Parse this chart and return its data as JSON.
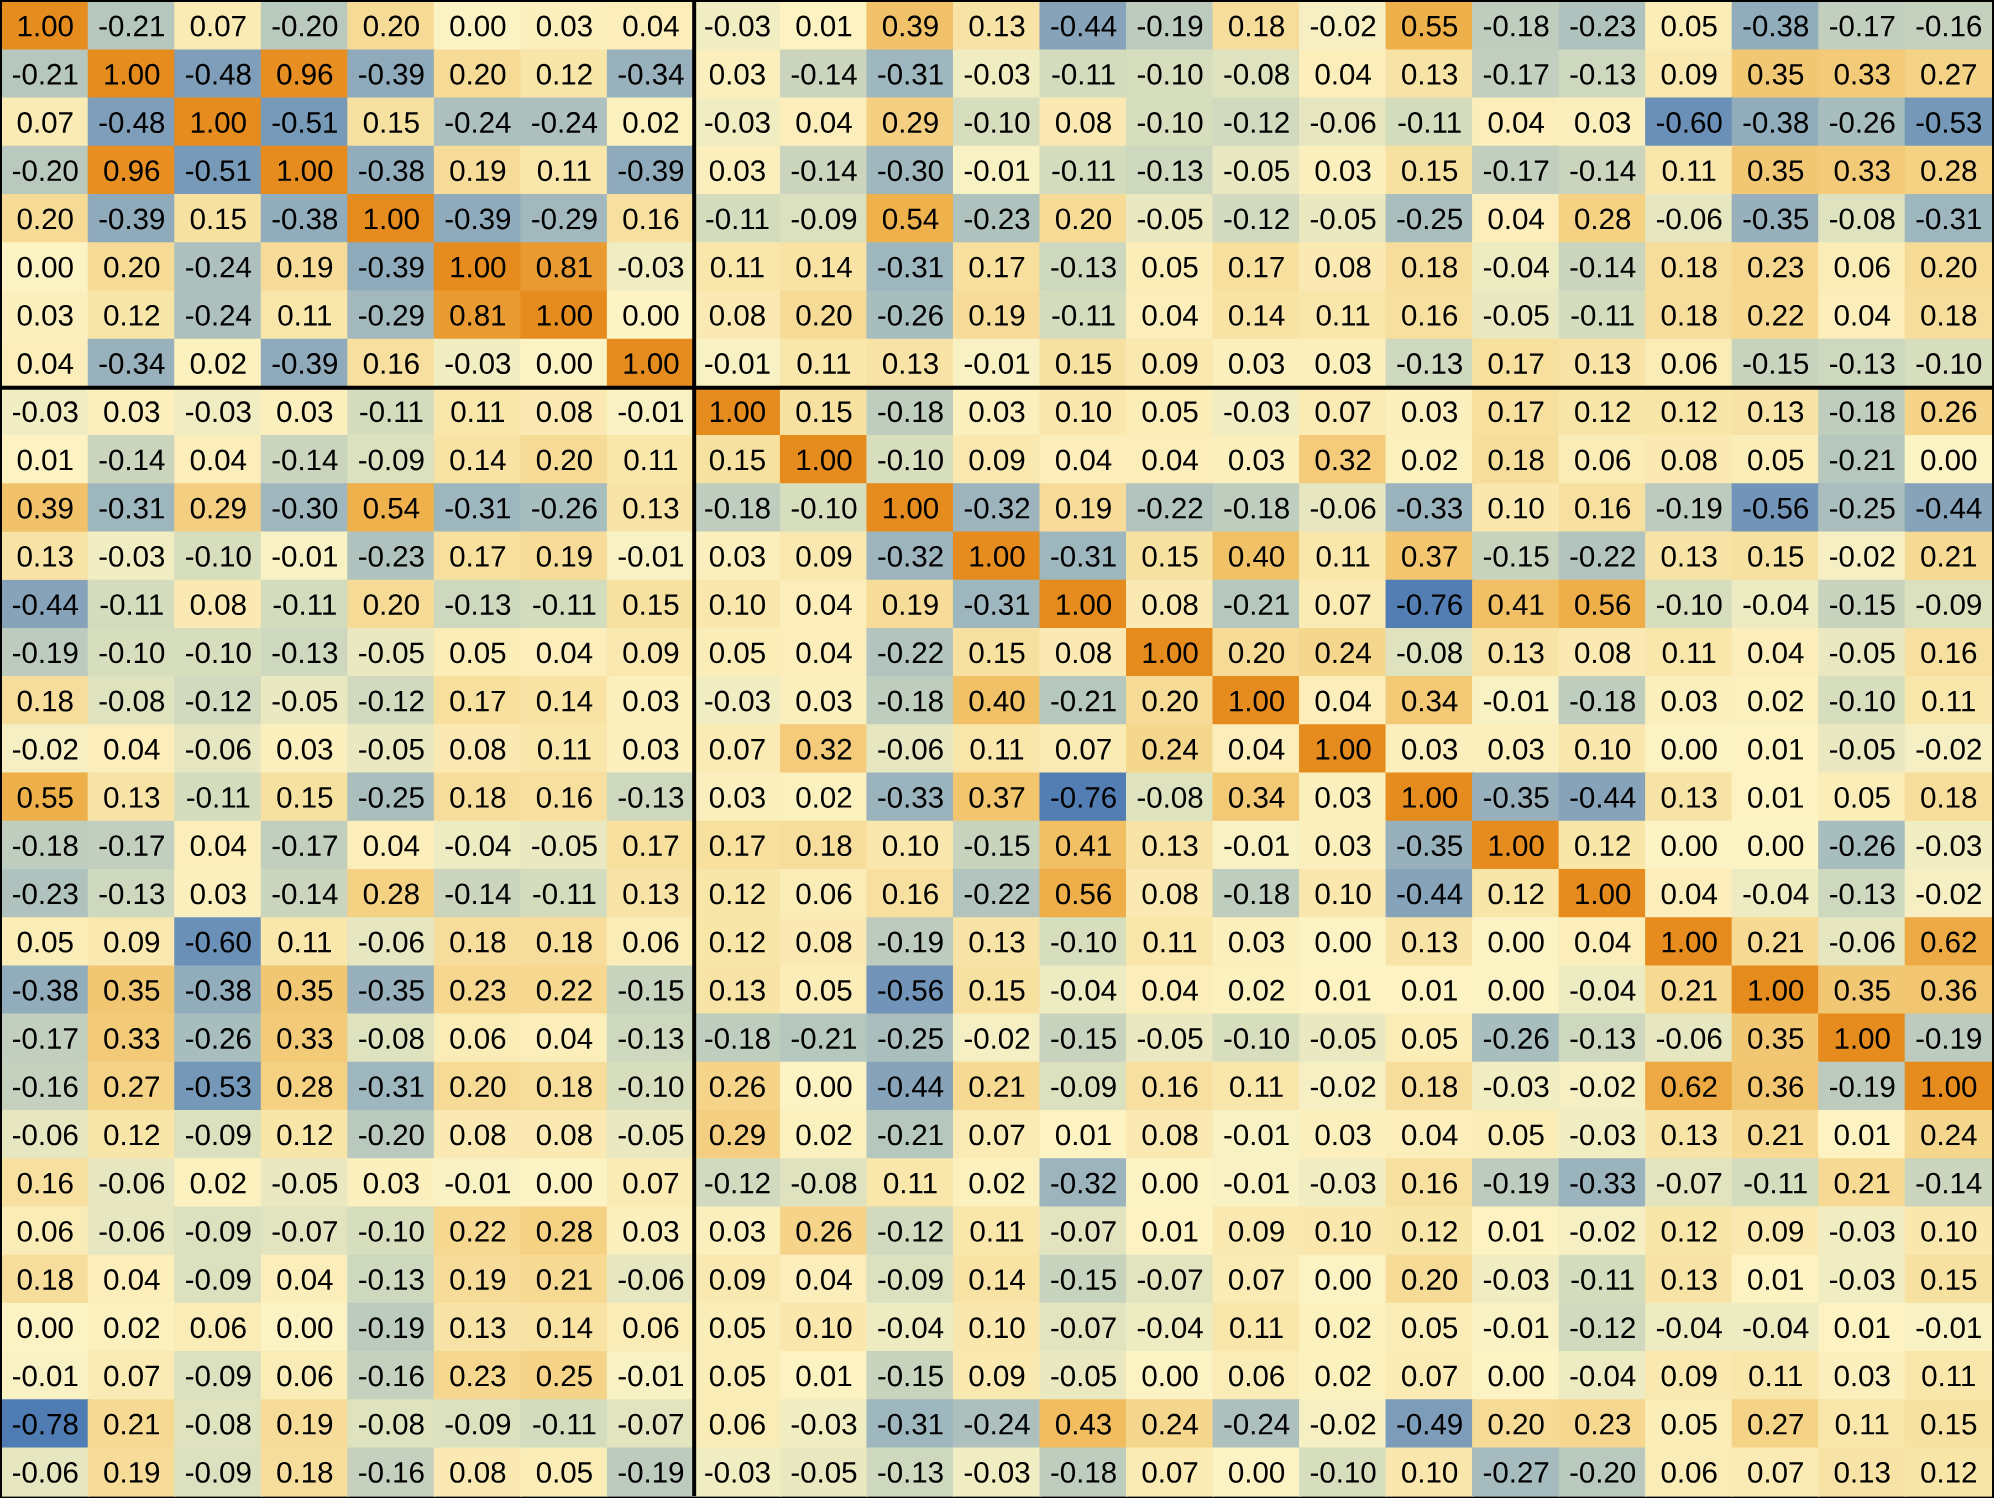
{
  "chart_data": {
    "type": "heatmap",
    "categories": [
      null,
      null,
      null,
      null,
      null,
      null,
      null,
      null,
      null,
      null,
      null,
      null,
      null,
      null,
      null,
      null,
      null,
      null,
      null,
      null,
      null,
      null,
      null
    ],
    "y_categories": [
      null,
      null,
      null,
      null,
      null,
      null,
      null,
      null,
      null,
      null,
      null,
      null,
      null,
      null,
      null,
      null,
      null,
      null,
      null,
      null,
      null,
      null,
      null,
      null,
      null,
      null,
      null,
      null,
      null,
      null,
      null
    ],
    "cells": [
      [
        1.0,
        -0.21,
        0.07,
        -0.2,
        0.2,
        0.0,
        0.03,
        0.04,
        -0.03,
        0.01,
        0.39,
        0.13,
        -0.44,
        -0.19,
        0.18,
        -0.02,
        0.55,
        -0.18,
        -0.23,
        0.05,
        -0.38,
        -0.17,
        -0.16
      ],
      [
        -0.21,
        1.0,
        -0.48,
        0.96,
        -0.39,
        0.2,
        0.12,
        -0.34,
        0.03,
        -0.14,
        -0.31,
        -0.03,
        -0.11,
        -0.1,
        -0.08,
        0.04,
        0.13,
        -0.17,
        -0.13,
        0.09,
        0.35,
        0.33,
        0.27
      ],
      [
        0.07,
        -0.48,
        1.0,
        -0.51,
        0.15,
        -0.24,
        -0.24,
        0.02,
        -0.03,
        0.04,
        0.29,
        -0.1,
        0.08,
        -0.1,
        -0.12,
        -0.06,
        -0.11,
        0.04,
        0.03,
        -0.6,
        -0.38,
        -0.26,
        -0.53
      ],
      [
        -0.2,
        0.96,
        -0.51,
        1.0,
        -0.38,
        0.19,
        0.11,
        -0.39,
        0.03,
        -0.14,
        -0.3,
        -0.01,
        -0.11,
        -0.13,
        -0.05,
        0.03,
        0.15,
        -0.17,
        -0.14,
        0.11,
        0.35,
        0.33,
        0.28
      ],
      [
        0.2,
        -0.39,
        0.15,
        -0.38,
        1.0,
        -0.39,
        -0.29,
        0.16,
        -0.11,
        -0.09,
        0.54,
        -0.23,
        0.2,
        -0.05,
        -0.12,
        -0.05,
        -0.25,
        0.04,
        0.28,
        -0.06,
        -0.35,
        -0.08,
        -0.31
      ],
      [
        0.0,
        0.2,
        -0.24,
        0.19,
        -0.39,
        1.0,
        0.81,
        -0.03,
        0.11,
        0.14,
        -0.31,
        0.17,
        -0.13,
        0.05,
        0.17,
        0.08,
        0.18,
        -0.04,
        -0.14,
        0.18,
        0.23,
        0.06,
        0.2
      ],
      [
        0.03,
        0.12,
        -0.24,
        0.11,
        -0.29,
        0.81,
        1.0,
        0.0,
        0.08,
        0.2,
        -0.26,
        0.19,
        -0.11,
        0.04,
        0.14,
        0.11,
        0.16,
        -0.05,
        -0.11,
        0.18,
        0.22,
        0.04,
        0.18
      ],
      [
        0.04,
        -0.34,
        0.02,
        -0.39,
        0.16,
        -0.03,
        0.0,
        1.0,
        -0.01,
        0.11,
        0.13,
        -0.01,
        0.15,
        0.09,
        0.03,
        0.03,
        -0.13,
        0.17,
        0.13,
        0.06,
        -0.15,
        -0.13,
        -0.1
      ],
      [
        -0.03,
        0.03,
        -0.03,
        0.03,
        -0.11,
        0.11,
        0.08,
        -0.01,
        1.0,
        0.15,
        -0.18,
        0.03,
        0.1,
        0.05,
        -0.03,
        0.07,
        0.03,
        0.17,
        0.12,
        0.12,
        0.13,
        -0.18,
        0.26
      ],
      [
        0.01,
        -0.14,
        0.04,
        -0.14,
        -0.09,
        0.14,
        0.2,
        0.11,
        0.15,
        1.0,
        -0.1,
        0.09,
        0.04,
        0.04,
        0.03,
        0.32,
        0.02,
        0.18,
        0.06,
        0.08,
        0.05,
        -0.21,
        0.0
      ],
      [
        0.39,
        -0.31,
        0.29,
        -0.3,
        0.54,
        -0.31,
        -0.26,
        0.13,
        -0.18,
        -0.1,
        1.0,
        -0.32,
        0.19,
        -0.22,
        -0.18,
        -0.06,
        -0.33,
        0.1,
        0.16,
        -0.19,
        -0.56,
        -0.25,
        -0.44
      ],
      [
        0.13,
        -0.03,
        -0.1,
        -0.01,
        -0.23,
        0.17,
        0.19,
        -0.01,
        0.03,
        0.09,
        -0.32,
        1.0,
        -0.31,
        0.15,
        0.4,
        0.11,
        0.37,
        -0.15,
        -0.22,
        0.13,
        0.15,
        -0.02,
        0.21
      ],
      [
        -0.44,
        -0.11,
        0.08,
        -0.11,
        0.2,
        -0.13,
        -0.11,
        0.15,
        0.1,
        0.04,
        0.19,
        -0.31,
        1.0,
        0.08,
        -0.21,
        0.07,
        -0.76,
        0.41,
        0.56,
        -0.1,
        -0.04,
        -0.15,
        -0.09
      ],
      [
        -0.19,
        -0.1,
        -0.1,
        -0.13,
        -0.05,
        0.05,
        0.04,
        0.09,
        0.05,
        0.04,
        -0.22,
        0.15,
        0.08,
        1.0,
        0.2,
        0.24,
        -0.08,
        0.13,
        0.08,
        0.11,
        0.04,
        -0.05,
        0.16
      ],
      [
        0.18,
        -0.08,
        -0.12,
        -0.05,
        -0.12,
        0.17,
        0.14,
        0.03,
        -0.03,
        0.03,
        -0.18,
        0.4,
        -0.21,
        0.2,
        1.0,
        0.04,
        0.34,
        -0.01,
        -0.18,
        0.03,
        0.02,
        -0.1,
        0.11
      ],
      [
        -0.02,
        0.04,
        -0.06,
        0.03,
        -0.05,
        0.08,
        0.11,
        0.03,
        0.07,
        0.32,
        -0.06,
        0.11,
        0.07,
        0.24,
        0.04,
        1.0,
        0.03,
        0.03,
        0.1,
        0.0,
        0.01,
        -0.05,
        -0.02
      ],
      [
        0.55,
        0.13,
        -0.11,
        0.15,
        -0.25,
        0.18,
        0.16,
        -0.13,
        0.03,
        0.02,
        -0.33,
        0.37,
        -0.76,
        -0.08,
        0.34,
        0.03,
        1.0,
        -0.35,
        -0.44,
        0.13,
        0.01,
        0.05,
        0.18
      ],
      [
        -0.18,
        -0.17,
        0.04,
        -0.17,
        0.04,
        -0.04,
        -0.05,
        0.17,
        0.17,
        0.18,
        0.1,
        -0.15,
        0.41,
        0.13,
        -0.01,
        0.03,
        -0.35,
        1.0,
        0.12,
        0.0,
        0.0,
        -0.26,
        -0.03
      ],
      [
        -0.23,
        -0.13,
        0.03,
        -0.14,
        0.28,
        -0.14,
        -0.11,
        0.13,
        0.12,
        0.06,
        0.16,
        -0.22,
        0.56,
        0.08,
        -0.18,
        0.1,
        -0.44,
        0.12,
        1.0,
        0.04,
        -0.04,
        -0.13,
        -0.02
      ],
      [
        0.05,
        0.09,
        -0.6,
        0.11,
        -0.06,
        0.18,
        0.18,
        0.06,
        0.12,
        0.08,
        -0.19,
        0.13,
        -0.1,
        0.11,
        0.03,
        0.0,
        0.13,
        0.0,
        0.04,
        1.0,
        0.21,
        -0.06,
        0.62
      ],
      [
        -0.38,
        0.35,
        -0.38,
        0.35,
        -0.35,
        0.23,
        0.22,
        -0.15,
        0.13,
        0.05,
        -0.56,
        0.15,
        -0.04,
        0.04,
        0.02,
        0.01,
        0.01,
        0.0,
        -0.04,
        0.21,
        1.0,
        0.35,
        0.36
      ],
      [
        -0.17,
        0.33,
        -0.26,
        0.33,
        -0.08,
        0.06,
        0.04,
        -0.13,
        -0.18,
        -0.21,
        -0.25,
        -0.02,
        -0.15,
        -0.05,
        -0.1,
        -0.05,
        0.05,
        -0.26,
        -0.13,
        -0.06,
        0.35,
        1.0,
        -0.19
      ],
      [
        -0.16,
        0.27,
        -0.53,
        0.28,
        -0.31,
        0.2,
        0.18,
        -0.1,
        0.26,
        0.0,
        -0.44,
        0.21,
        -0.09,
        0.16,
        0.11,
        -0.02,
        0.18,
        -0.03,
        -0.02,
        0.62,
        0.36,
        -0.19,
        1.0
      ],
      [
        -0.06,
        0.12,
        -0.09,
        0.12,
        -0.2,
        0.08,
        0.08,
        -0.05,
        0.29,
        0.02,
        -0.21,
        0.07,
        0.01,
        0.08,
        -0.01,
        0.03,
        0.04,
        0.05,
        -0.03,
        0.13,
        0.21,
        0.01,
        0.24
      ],
      [
        0.16,
        -0.06,
        0.02,
        -0.05,
        0.03,
        -0.01,
        0.0,
        0.07,
        -0.12,
        -0.08,
        0.11,
        0.02,
        -0.32,
        0.0,
        -0.01,
        -0.03,
        0.16,
        -0.19,
        -0.33,
        -0.07,
        -0.11,
        0.21,
        -0.14
      ],
      [
        0.06,
        -0.06,
        -0.09,
        -0.07,
        -0.1,
        0.22,
        0.28,
        0.03,
        0.03,
        0.26,
        -0.12,
        0.11,
        -0.07,
        0.01,
        0.09,
        0.1,
        0.12,
        0.01,
        -0.02,
        0.12,
        0.09,
        -0.03,
        0.1
      ],
      [
        0.18,
        0.04,
        -0.09,
        0.04,
        -0.13,
        0.19,
        0.21,
        -0.06,
        0.09,
        0.04,
        -0.09,
        0.14,
        -0.15,
        -0.07,
        0.07,
        0.0,
        0.2,
        -0.03,
        -0.11,
        0.13,
        0.01,
        -0.03,
        0.15
      ],
      [
        0.0,
        0.02,
        0.06,
        0.0,
        -0.19,
        0.13,
        0.14,
        0.06,
        0.05,
        0.1,
        -0.04,
        0.1,
        -0.07,
        -0.04,
        0.11,
        0.02,
        0.05,
        -0.01,
        -0.12,
        -0.04,
        -0.04,
        0.01,
        -0.01
      ],
      [
        -0.01,
        0.07,
        -0.09,
        0.06,
        -0.16,
        0.23,
        0.25,
        -0.01,
        0.05,
        0.01,
        -0.15,
        0.09,
        -0.05,
        0.0,
        0.06,
        0.02,
        0.07,
        0.0,
        -0.04,
        0.09,
        0.11,
        0.03,
        0.11
      ],
      [
        -0.78,
        0.21,
        -0.08,
        0.19,
        -0.08,
        -0.09,
        -0.11,
        -0.07,
        0.06,
        -0.03,
        -0.31,
        -0.24,
        0.43,
        0.24,
        -0.24,
        -0.02,
        -0.49,
        0.2,
        0.23,
        0.05,
        0.27,
        0.11,
        0.15
      ],
      [
        -0.06,
        0.19,
        -0.09,
        0.18,
        -0.16,
        0.08,
        0.05,
        -0.19,
        -0.03,
        -0.05,
        -0.13,
        -0.03,
        -0.18,
        0.07,
        0.0,
        -0.1,
        0.1,
        -0.27,
        -0.2,
        0.06,
        0.07,
        0.13,
        0.12
      ]
    ],
    "cell_labels": [
      [
        "1.00",
        "-0.21",
        "0.07",
        "-0.20",
        "0.20",
        "0.00",
        "0.03",
        "0.04",
        "-0.03",
        "0.01",
        "0.39",
        "0.13",
        "-0.44",
        "-0.19",
        "0.18",
        "-0.02",
        "0.55",
        "-0.18",
        "-0.23",
        "0.05",
        "-0.38",
        "-0.17",
        "-0.16"
      ],
      [
        "-0.21",
        "1.00",
        "-0.48",
        "0.96",
        "-0.39",
        "0.20",
        "0.12",
        "-0.34",
        "0.03",
        "-0.14",
        "-0.31",
        "-0.03",
        "-0.11",
        "-0.10",
        "-0.08",
        "0.04",
        "0.13",
        "-0.17",
        "-0.13",
        "0.09",
        "0.35",
        "0.33",
        "0.27"
      ],
      [
        "0.07",
        "-0.48",
        "1.00",
        "-0.51",
        "0.15",
        "-0.24",
        "-0.24",
        "0.02",
        "-0.03",
        "0.04",
        "0.29",
        "-0.10",
        "0.08",
        "-0.10",
        "-0.12",
        "-0.06",
        "-0.11",
        "0.04",
        "0.03",
        "-0.60",
        "-0.38",
        "-0.26",
        "-0.53"
      ],
      [
        "-0.20",
        "0.96",
        "-0.51",
        "1.00",
        "-0.38",
        "0.19",
        "0.11",
        "-0.39",
        "0.03",
        "-0.14",
        "-0.30",
        "-0.01",
        "-0.11",
        "-0.13",
        "-0.05",
        "0.03",
        "0.15",
        "-0.17",
        "-0.14",
        "0.11",
        "0.35",
        "0.33",
        "0.28"
      ],
      [
        "0.20",
        "-0.39",
        "0.15",
        "-0.38",
        "1.00",
        "-0.39",
        "-0.29",
        "0.16",
        "-0.11",
        "-0.09",
        "0.54",
        "-0.23",
        "0.20",
        "-0.05",
        "-0.12",
        "-0.05",
        "-0.25",
        "0.04",
        "0.28",
        "-0.06",
        "-0.35",
        "-0.08",
        "-0.31"
      ],
      [
        "0.00",
        "0.20",
        "-0.24",
        "0.19",
        "-0.39",
        "1.00",
        "0.81",
        "-0.03",
        "0.11",
        "0.14",
        "-0.31",
        "0.17",
        "-0.13",
        "0.05",
        "0.17",
        "0.08",
        "0.18",
        "-0.04",
        "-0.14",
        "0.18",
        "0.23",
        "0.06",
        "0.20"
      ],
      [
        "0.03",
        "0.12",
        "-0.24",
        "0.11",
        "-0.29",
        "0.81",
        "1.00",
        "0.00",
        "0.08",
        "0.20",
        "-0.26",
        "0.19",
        "-0.11",
        "0.04",
        "0.14",
        "0.11",
        "0.16",
        "-0.05",
        "-0.11",
        "0.18",
        "0.22",
        "0.04",
        "0.18"
      ],
      [
        "0.04",
        "-0.34",
        "0.02",
        "-0.39",
        "0.16",
        "-0.03",
        "0.00",
        "1.00",
        "-0.01",
        "0.11",
        "0.13",
        "-0.01",
        "0.15",
        "0.09",
        "0.03",
        "0.03",
        "-0.13",
        "0.17",
        "0.13",
        "0.06",
        "-0.15",
        "-0.13",
        "-0.10"
      ],
      [
        "-0.03",
        "0.03",
        "-0.03",
        "0.03",
        "-0.11",
        "0.11",
        "0.08",
        "-0.01",
        "1.00",
        "0.15",
        "-0.18",
        "0.03",
        "0.10",
        "0.05",
        "-0.03",
        "0.07",
        "0.03",
        "0.17",
        "0.12",
        "0.12",
        "0.13",
        "-0.18",
        "0.26"
      ],
      [
        "0.01",
        "-0.14",
        "0.04",
        "-0.14",
        "-0.09",
        "0.14",
        "0.20",
        "0.11",
        "0.15",
        "1.00",
        "-0.10",
        "0.09",
        "0.04",
        "0.04",
        "0.03",
        "0.32",
        "0.02",
        "0.18",
        "0.06",
        "0.08",
        "0.05",
        "-0.21",
        "0.00"
      ],
      [
        "0.39",
        "-0.31",
        "0.29",
        "-0.30",
        "0.54",
        "-0.31",
        "-0.26",
        "0.13",
        "-0.18",
        "-0.10",
        "1.00",
        "-0.32",
        "0.19",
        "-0.22",
        "-0.18",
        "-0.06",
        "-0.33",
        "0.10",
        "0.16",
        "-0.19",
        "-0.56",
        "-0.25",
        "-0.44"
      ],
      [
        "0.13",
        "-0.03",
        "-0.10",
        "-0.01",
        "-0.23",
        "0.17",
        "0.19",
        "-0.01",
        "0.03",
        "0.09",
        "-0.32",
        "1.00",
        "-0.31",
        "0.15",
        "0.40",
        "0.11",
        "0.37",
        "-0.15",
        "-0.22",
        "0.13",
        "0.15",
        "-0.02",
        "0.21"
      ],
      [
        "-0.44",
        "-0.11",
        "0.08",
        "-0.11",
        "0.20",
        "-0.13",
        "-0.11",
        "0.15",
        "0.10",
        "0.04",
        "0.19",
        "-0.31",
        "1.00",
        "0.08",
        "-0.21",
        "0.07",
        "-0.76",
        "0.41",
        "0.56",
        "-0.10",
        "-0.04",
        "-0.15",
        "-0.09"
      ],
      [
        "-0.19",
        "-0.10",
        "-0.10",
        "-0.13",
        "-0.05",
        "0.05",
        "0.04",
        "0.09",
        "0.05",
        "0.04",
        "-0.22",
        "0.15",
        "0.08",
        "1.00",
        "0.20",
        "0.24",
        "-0.08",
        "0.13",
        "0.08",
        "0.11",
        "0.04",
        "-0.05",
        "0.16"
      ],
      [
        "0.18",
        "-0.08",
        "-0.12",
        "-0.05",
        "-0.12",
        "0.17",
        "0.14",
        "0.03",
        "-0.03",
        "0.03",
        "-0.18",
        "0.40",
        "-0.21",
        "0.20",
        "1.00",
        "0.04",
        "0.34",
        "-0.01",
        "-0.18",
        "0.03",
        "0.02",
        "-0.10",
        "0.11"
      ],
      [
        "-0.02",
        "0.04",
        "-0.06",
        "0.03",
        "-0.05",
        "0.08",
        "0.11",
        "0.03",
        "0.07",
        "0.32",
        "-0.06",
        "0.11",
        "0.07",
        "0.24",
        "0.04",
        "1.00",
        "0.03",
        "0.03",
        "0.10",
        "0.00",
        "0.01",
        "-0.05",
        "-0.02"
      ],
      [
        "0.55",
        "0.13",
        "-0.11",
        "0.15",
        "-0.25",
        "0.18",
        "0.16",
        "-0.13",
        "0.03",
        "0.02",
        "-0.33",
        "0.37",
        "-0.76",
        "-0.08",
        "0.34",
        "0.03",
        "1.00",
        "-0.35",
        "-0.44",
        "0.13",
        "0.01",
        "0.05",
        "0.18"
      ],
      [
        "-0.18",
        "-0.17",
        "0.04",
        "-0.17",
        "0.04",
        "-0.04",
        "-0.05",
        "0.17",
        "0.17",
        "0.18",
        "0.10",
        "-0.15",
        "0.41",
        "0.13",
        "-0.01",
        "0.03",
        "-0.35",
        "1.00",
        "0.12",
        "0.00",
        "0.00",
        "-0.26",
        "-0.03"
      ],
      [
        "-0.23",
        "-0.13",
        "0.03",
        "-0.14",
        "0.28",
        "-0.14",
        "-0.11",
        "0.13",
        "0.12",
        "0.06",
        "0.16",
        "-0.22",
        "0.56",
        "0.08",
        "-0.18",
        "0.10",
        "-0.44",
        "0.12",
        "1.00",
        "0.04",
        "-0.04",
        "-0.13",
        "-0.02"
      ],
      [
        "0.05",
        "0.09",
        "-0.60",
        "0.11",
        "-0.06",
        "0.18",
        "0.18",
        "0.06",
        "0.12",
        "0.08",
        "-0.19",
        "0.13",
        "-0.10",
        "0.11",
        "0.03",
        "0.00",
        "0.13",
        "0.00",
        "0.04",
        "1.00",
        "0.21",
        "-0.06",
        "0.62"
      ],
      [
        "-0.38",
        "0.35",
        "-0.38",
        "0.35",
        "-0.35",
        "0.23",
        "0.22",
        "-0.15",
        "0.13",
        "0.05",
        "-0.56",
        "0.15",
        "-0.04",
        "0.04",
        "0.02",
        "0.01",
        "0.01",
        "0.00",
        "-0.04",
        "0.21",
        "1.00",
        "0.35",
        "0.36"
      ],
      [
        "-0.17",
        "0.33",
        "-0.26",
        "0.33",
        "-0.08",
        "0.06",
        "0.04",
        "-0.13",
        "-0.18",
        "-0.21",
        "-0.25",
        "-0.02",
        "-0.15",
        "-0.05",
        "-0.10",
        "-0.05",
        "0.05",
        "-0.26",
        "-0.13",
        "-0.06",
        "0.35",
        "1.00",
        "-0.19"
      ],
      [
        "-0.16",
        "0.27",
        "-0.53",
        "0.28",
        "-0.31",
        "0.20",
        "0.18",
        "-0.10",
        "0.26",
        "0.00",
        "-0.44",
        "0.21",
        "-0.09",
        "0.16",
        "0.11",
        "-0.02",
        "0.18",
        "-0.03",
        "-0.02",
        "0.62",
        "0.36",
        "-0.19",
        "1.00"
      ],
      [
        "-0.06",
        "0.12",
        "-0.09",
        "0.12",
        "-0.20",
        "0.08",
        "0.08",
        "-0.05",
        "0.29",
        "0.02",
        "-0.21",
        "0.07",
        "0.01",
        "0.08",
        "-0.01",
        "0.03",
        "0.04",
        "0.05",
        "-0.03",
        "0.13",
        "0.21",
        "0.01",
        "0.24"
      ],
      [
        "0.16",
        "-0.06",
        "0.02",
        "-0.05",
        "0.03",
        "-0.01",
        "0.00",
        "0.07",
        "-0.12",
        "-0.08",
        "0.11",
        "0.02",
        "-0.32",
        "0.00",
        "-0.01",
        "-0.03",
        "0.16",
        "-0.19",
        "-0.33",
        "-0.07",
        "-0.11",
        "0.21",
        "-0.14"
      ],
      [
        "0.06",
        "-0.06",
        "-0.09",
        "-0.07",
        "-0.10",
        "0.22",
        "0.28",
        "0.03",
        "0.03",
        "0.26",
        "-0.12",
        "0.11",
        "-0.07",
        "0.01",
        "0.09",
        "0.10",
        "0.12",
        "0.01",
        "-0.02",
        "0.12",
        "0.09",
        "-0.03",
        "0.10"
      ],
      [
        "0.18",
        "0.04",
        "-0.09",
        "0.04",
        "-0.13",
        "0.19",
        "0.21",
        "-0.06",
        "0.09",
        "0.04",
        "-0.09",
        "0.14",
        "-0.15",
        "-0.07",
        "0.07",
        "0.00",
        "0.20",
        "-0.03",
        "-0.11",
        "0.13",
        "0.01",
        "-0.03",
        "0.15"
      ],
      [
        "0.00",
        "0.02",
        "0.06",
        "0.00",
        "-0.19",
        "0.13",
        "0.14",
        "0.06",
        "0.05",
        "0.10",
        "-0.04",
        "0.10",
        "-0.07",
        "-0.04",
        "0.11",
        "0.02",
        "0.05",
        "-0.01",
        "-0.12",
        "-0.04",
        "-0.04",
        "0.01",
        "-0.01"
      ],
      [
        "-0.01",
        "0.07",
        "-0.09",
        "0.06",
        "-0.16",
        "0.23",
        "0.25",
        "-0.01",
        "0.05",
        "0.01",
        "-0.15",
        "0.09",
        "-0.05",
        "0.00",
        "0.06",
        "0.02",
        "0.07",
        "0.00",
        "-0.04",
        "0.09",
        "0.11",
        "0.03",
        "0.11"
      ],
      [
        "-0.78",
        "0.21",
        "-0.08",
        "0.19",
        "-0.08",
        "-0.09",
        "-0.11",
        "-0.07",
        "0.06",
        "-0.03",
        "-0.31",
        "-0.24",
        "0.43",
        "0.24",
        "-0.24",
        "-0.02",
        "-0.49",
        "0.20",
        "0.23",
        "0.05",
        "0.27",
        "0.11",
        "0.15"
      ],
      [
        "-0.06",
        "0.19",
        "-0.09",
        "0.18",
        "-0.16",
        "0.08",
        "0.05",
        "-0.19",
        "-0.03",
        "-0.05",
        "-0.13",
        "-0.03",
        "-0.18",
        "0.07",
        "0.00",
        "-0.10",
        "0.10",
        "-0.27",
        "-0.20",
        "0.06",
        "0.07",
        "0.13",
        "0.12"
      ]
    ]
  }
}
